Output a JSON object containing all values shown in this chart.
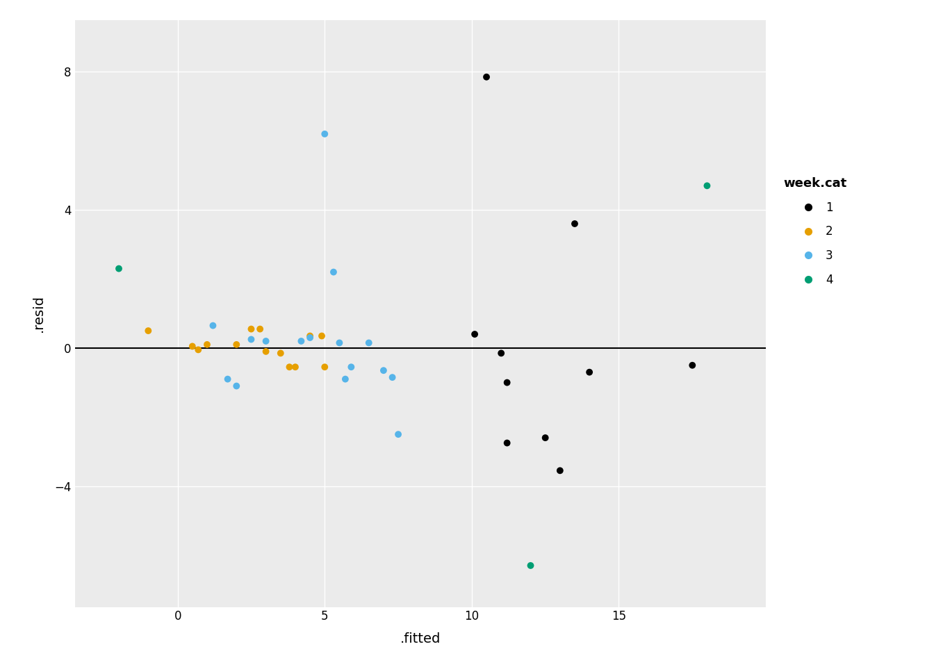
{
  "title": "",
  "xlabel": ".fitted",
  "ylabel": ".resid",
  "legend_title": "week.cat",
  "xlim": [
    -3.5,
    20
  ],
  "ylim": [
    -7.5,
    9.5
  ],
  "xticks": [
    0,
    5,
    10,
    15
  ],
  "yticks": [
    -4,
    0,
    4,
    8
  ],
  "panel_background": "#EBEBEB",
  "grid_color": "#FFFFFF",
  "hline_y": 0,
  "point_size": 50,
  "categories": {
    "1": {
      "color": "#000000",
      "points": [
        [
          10.1,
          0.4
        ],
        [
          10.5,
          7.85
        ],
        [
          11.0,
          -0.15
        ],
        [
          11.2,
          -1.0
        ],
        [
          11.2,
          -2.75
        ],
        [
          12.5,
          -2.6
        ],
        [
          13.0,
          -3.55
        ],
        [
          13.5,
          3.6
        ],
        [
          14.0,
          -0.7
        ],
        [
          17.5,
          -0.5
        ]
      ]
    },
    "2": {
      "color": "#E69F00",
      "points": [
        [
          -1.0,
          0.5
        ],
        [
          0.5,
          0.05
        ],
        [
          0.7,
          -0.05
        ],
        [
          1.0,
          0.1
        ],
        [
          2.0,
          0.1
        ],
        [
          2.5,
          0.55
        ],
        [
          2.8,
          0.55
        ],
        [
          3.0,
          -0.1
        ],
        [
          3.5,
          -0.15
        ],
        [
          3.8,
          -0.55
        ],
        [
          4.0,
          -0.55
        ],
        [
          4.5,
          0.35
        ],
        [
          4.9,
          0.35
        ],
        [
          5.0,
          -0.55
        ]
      ]
    },
    "3": {
      "color": "#56B4E9",
      "points": [
        [
          1.2,
          0.65
        ],
        [
          1.7,
          -0.9
        ],
        [
          2.0,
          -1.1
        ],
        [
          2.5,
          0.25
        ],
        [
          3.0,
          0.2
        ],
        [
          4.2,
          0.2
        ],
        [
          4.5,
          0.3
        ],
        [
          5.0,
          6.2
        ],
        [
          5.3,
          2.2
        ],
        [
          5.5,
          0.15
        ],
        [
          5.7,
          -0.9
        ],
        [
          5.9,
          -0.55
        ],
        [
          6.5,
          0.15
        ],
        [
          7.0,
          -0.65
        ],
        [
          7.3,
          -0.85
        ],
        [
          7.5,
          -2.5
        ]
      ]
    },
    "4": {
      "color": "#009E73",
      "points": [
        [
          -2.0,
          2.3
        ],
        [
          12.0,
          -6.3
        ],
        [
          18.0,
          4.7
        ]
      ]
    }
  }
}
